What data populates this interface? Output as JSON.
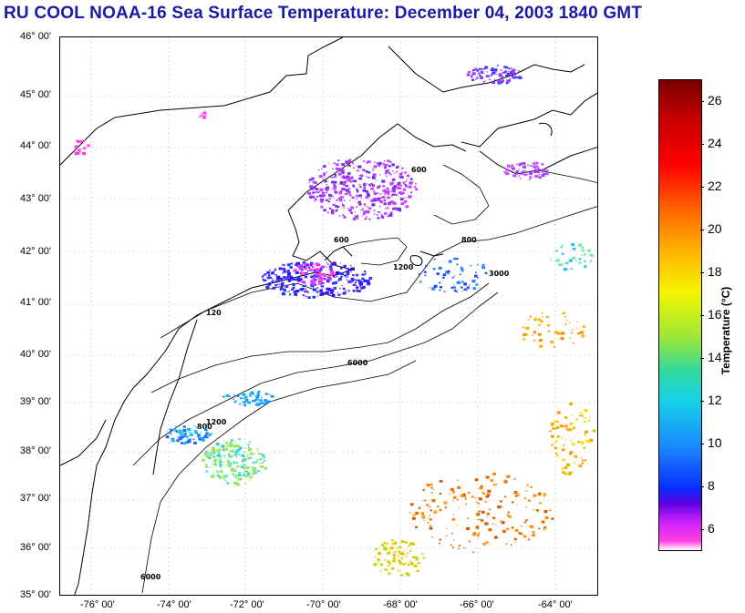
{
  "header": {
    "title": "RU COOL  NOAA-16  Sea Surface Temperature:  December 04, 2003 1840 GMT"
  },
  "map": {
    "region": "US Northeast / Mid-Atlantic shelf",
    "lat_labels": [
      "46° 00'",
      "45° 00'",
      "44° 00'",
      "43° 00'",
      "42° 00'",
      "41° 00'",
      "40° 00'",
      "39° 00'",
      "38° 00'",
      "37° 00'",
      "36° 00'",
      "35° 00'"
    ],
    "lon_labels": [
      "-76° 00'",
      "-74° 00'",
      "-72° 00'",
      "-70° 00'",
      "-68° 00'",
      "-66° 00'",
      "-64° 00'"
    ],
    "lat_range": [
      35,
      46
    ],
    "lon_range": [
      -77,
      -63
    ],
    "isobath_labels": [
      "120",
      "600",
      "800",
      "6000",
      "1200",
      "3000"
    ],
    "has_graticule": true
  },
  "colorbar": {
    "label": "Temperature (°C)",
    "ticks": [
      "26",
      "24",
      "22",
      "20",
      "18",
      "16",
      "14",
      "12",
      "10",
      "8",
      "6"
    ],
    "range": [
      5,
      27
    ],
    "colors": [
      "#7a0000",
      "#ff0000",
      "#ffb000",
      "#f5f500",
      "#2fd9a0",
      "#17d3e8",
      "#1a88ff",
      "#0a2cff",
      "#cc22ff",
      "#ff3ee0"
    ]
  }
}
